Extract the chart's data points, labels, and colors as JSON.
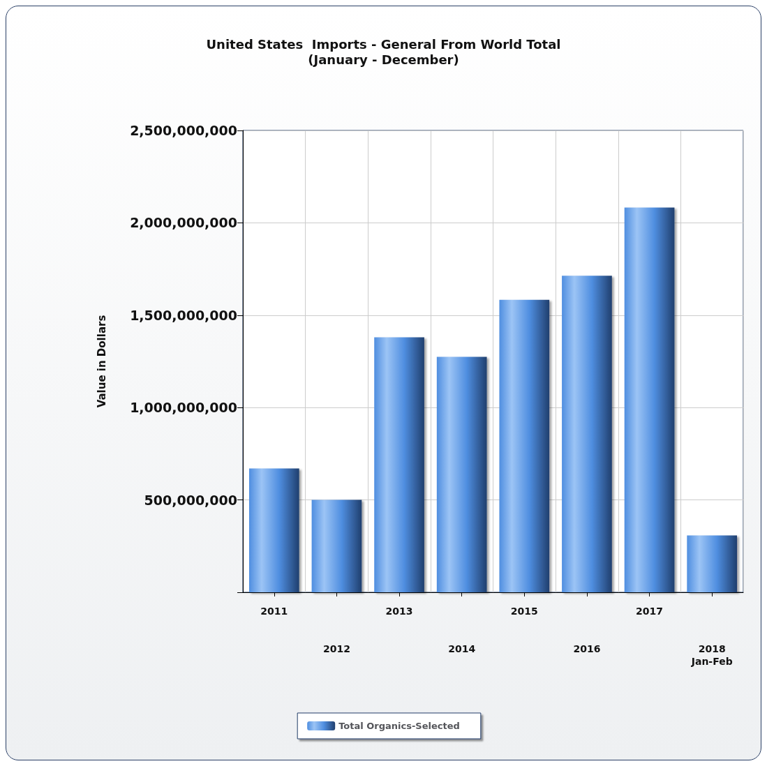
{
  "chart_data": {
    "type": "bar",
    "title": "United States  Imports - General From World Total",
    "subtitle": "(January - December)",
    "ylabel": "Value in Dollars",
    "categories": [
      "2011",
      "2012",
      "2013",
      "2014",
      "2015",
      "2016",
      "2017",
      "2018\nJan-Feb"
    ],
    "series": [
      {
        "name": "Total Organics-Selected",
        "color": "#4f8ee0",
        "values": [
          670000000,
          500000000,
          1380000000,
          1275000000,
          1583000000,
          1714000000,
          2083000000,
          308000000
        ]
      }
    ],
    "ylim": [
      0,
      2500000000
    ],
    "yticks": [
      {
        "value": 0,
        "label": null
      },
      {
        "value": 500000000,
        "label": "500,000,000"
      },
      {
        "value": 1000000000,
        "label": "1,000,000,000"
      },
      {
        "value": 1500000000,
        "label": "1,500,000,000"
      },
      {
        "value": 2000000000,
        "label": "2,000,000,000"
      },
      {
        "value": 2500000000,
        "label": "2,500,000,000"
      }
    ],
    "grid": true,
    "legend": "bottom"
  }
}
